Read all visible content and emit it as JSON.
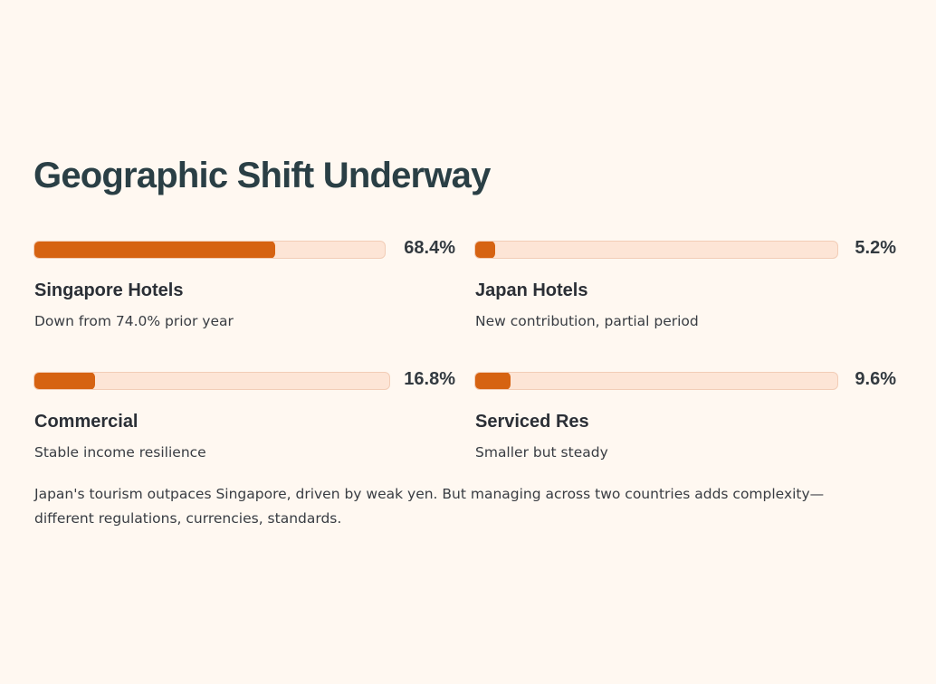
{
  "page": {
    "title": "Geographic Shift Underway",
    "summary": "Japan's tourism outpaces Singapore, driven by weak yen. But managing across two countries adds complexity—different regulations, currencies, standards."
  },
  "metrics": [
    {
      "label": "Singapore Hotels",
      "value": 68.4,
      "value_label": "68.4%",
      "caption": "Down from 74.0% prior year"
    },
    {
      "label": "Japan Hotels",
      "value": 5.2,
      "value_label": "5.2%",
      "caption": "New contribution, partial period"
    },
    {
      "label": "Commercial",
      "value": 16.8,
      "value_label": "16.8%",
      "caption": "Stable income resilience"
    },
    {
      "label": "Serviced Res",
      "value": 9.6,
      "value_label": "9.6%",
      "caption": "Smaller but steady"
    }
  ],
  "colors": {
    "background": "#fff8f1",
    "bar_fill": "#d66312",
    "bar_track": "#fde5d6",
    "title": "#2a3f45"
  }
}
